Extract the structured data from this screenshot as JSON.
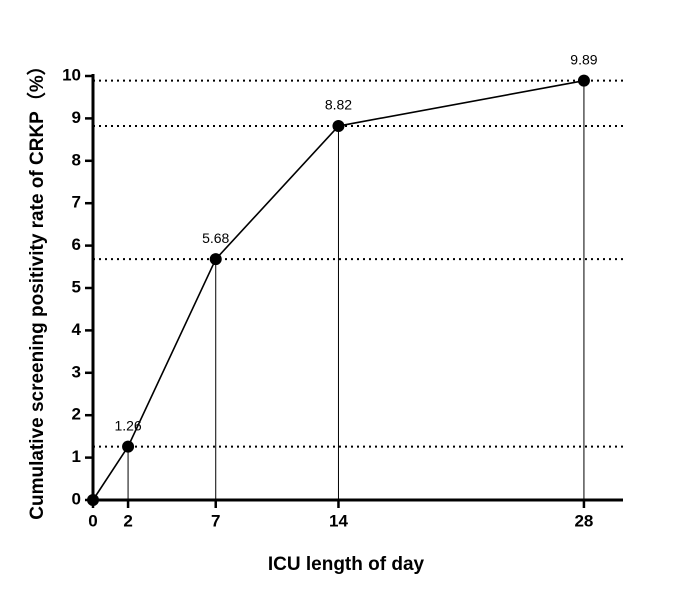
{
  "chart_data": {
    "type": "line",
    "x_label": "ICU length of day",
    "y_label": "Cumulative screening positivity rate of CRKP（%）",
    "x": [
      0,
      2,
      7,
      14,
      28
    ],
    "series": [
      {
        "color": "#000000",
        "values": [
          0,
          1.26,
          5.68,
          8.82,
          9.89
        ],
        "value_labels": [
          null,
          "1.26",
          "5.68",
          "8.82",
          "9.89"
        ]
      }
    ],
    "xlim": [
      0,
      30
    ],
    "xticks": [
      0,
      2,
      7,
      14,
      28
    ],
    "ylim": [
      0,
      10
    ],
    "yticks": [
      0,
      1,
      2,
      3,
      4,
      5,
      6,
      7,
      8,
      9,
      10
    ]
  }
}
